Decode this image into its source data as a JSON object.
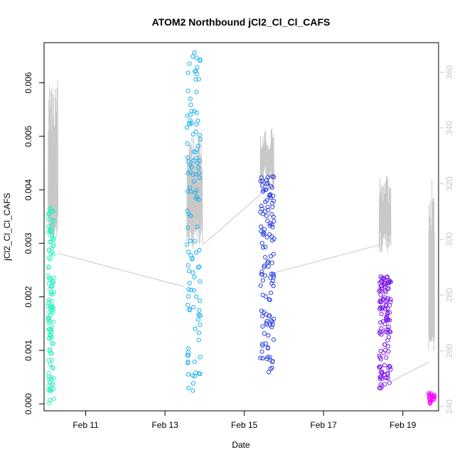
{
  "chart_data": {
    "type": "scatter",
    "title": "ATOM2 Northbound jCl2_Cl_Cl_CAFS",
    "xlabel": "Date",
    "ylabel": "jCl2_Cl_Cl_CAFS",
    "y2label": "",
    "x_ticks": [
      "Feb 11",
      "Feb 13",
      "Feb 15",
      "Feb 17",
      "Feb 19"
    ],
    "x_tick_days": [
      11,
      13,
      15,
      17,
      19
    ],
    "xlim_days": [
      9.95,
      19.9
    ],
    "y_ticks": [
      "0.000",
      "0.001",
      "0.002",
      "0.003",
      "0.004",
      "0.005",
      "0.006"
    ],
    "ylim": [
      -0.00013,
      0.00675
    ],
    "y2_ticks": [
      "240",
      "260",
      "280",
      "300",
      "320",
      "340",
      "360"
    ],
    "y2lim": [
      238.5,
      370.6
    ],
    "grid": false,
    "colors": {
      "points_gradient": [
        "#00ffaa",
        "#00b4ff",
        "#0a3cdc",
        "#8c00ff",
        "#ff00ff"
      ],
      "secondary_line": "#c8c8c8",
      "axis": "#000000"
    },
    "series": [
      {
        "kind": "points",
        "segments": [
          {
            "x_range": [
              10.05,
              10.2
            ],
            "y_top": 0.0037,
            "y_bottom": 0.0,
            "color": "#2cf0c0"
          },
          {
            "x_range": [
              13.55,
              13.9
            ],
            "y_top": 0.0066,
            "y_bottom": 0.0,
            "color": "#1ab0f0"
          },
          {
            "x_range": [
              15.4,
              15.75
            ],
            "y_top": 0.0043,
            "y_bottom": 0.0005,
            "color": "#2a40e0"
          },
          {
            "x_range": [
              18.4,
              18.7
            ],
            "y_top": 0.0024,
            "y_bottom": 0.00025,
            "color": "#7a1ae8"
          },
          {
            "x_range": [
              19.65,
              19.8
            ],
            "y_top": 0.0002,
            "y_bottom": 0.0,
            "color": "#ff00ff"
          }
        ]
      },
      {
        "kind": "line",
        "axis": "right",
        "segments": [
          {
            "x_range": [
              10.05,
              10.3
            ],
            "base": 300,
            "peak": 358
          },
          {
            "x_range": [
              13.55,
              13.95
            ],
            "base": 296,
            "peak": 340
          },
          {
            "x_range": [
              15.4,
              15.75
            ],
            "base": 318,
            "peak": 340
          },
          {
            "x_range": [
              18.4,
              18.7
            ],
            "base": 295,
            "peak": 323
          },
          {
            "x_range": [
              19.65,
              19.8
            ],
            "base": 260,
            "peak": 322
          }
        ],
        "connectors": [
          [
            10.3,
            295,
            13.5,
            283
          ],
          [
            13.95,
            298,
            15.4,
            316
          ],
          [
            15.75,
            288,
            18.4,
            298
          ],
          [
            18.7,
            249,
            19.65,
            256
          ]
        ]
      }
    ]
  }
}
